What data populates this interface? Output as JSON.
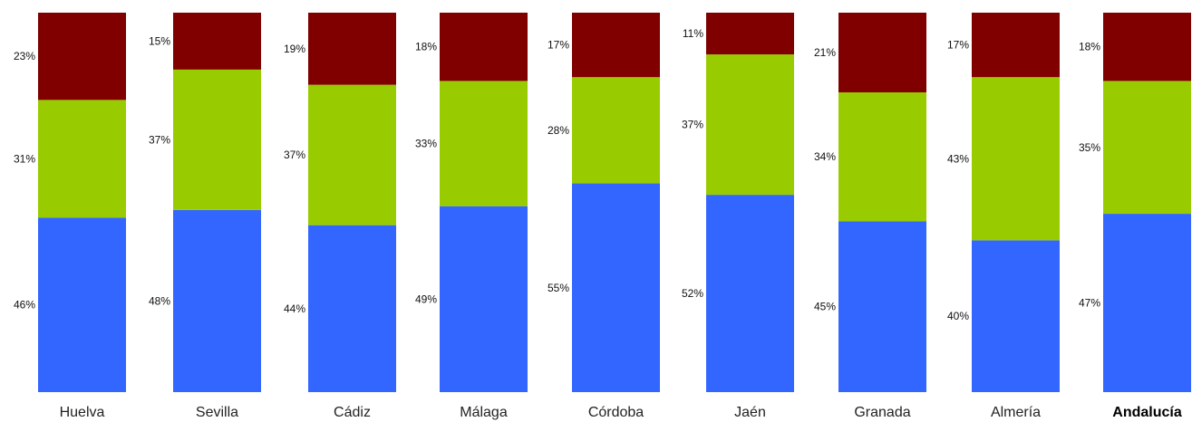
{
  "chart_data": {
    "type": "bar",
    "stacked": true,
    "normalized_percent": true,
    "categories": [
      "Huelva",
      "Sevilla",
      "Cádiz",
      "Málaga",
      "Córdoba",
      "Jaén",
      "Granada",
      "Almería",
      "Andalucía"
    ],
    "emphasized_category": "Andalucía",
    "series": [
      {
        "color": "#3366ff",
        "values": [
          46,
          48,
          44,
          49,
          55,
          52,
          45,
          40,
          47
        ],
        "labels": [
          "46%",
          "48%",
          "44%",
          "49%",
          "55%",
          "52%",
          "45%",
          "40%",
          "47%"
        ]
      },
      {
        "color": "#99cc00",
        "values": [
          31,
          37,
          37,
          33,
          28,
          37,
          34,
          43,
          35
        ],
        "labels": [
          "31%",
          "37%",
          "37%",
          "33%",
          "28%",
          "37%",
          "34%",
          "43%",
          "35%"
        ]
      },
      {
        "color": "#800000",
        "values": [
          23,
          15,
          19,
          18,
          17,
          11,
          21,
          17,
          18
        ],
        "labels": [
          "23%",
          "15%",
          "19%",
          "18%",
          "17%",
          "11%",
          "21%",
          "17%",
          "18%"
        ]
      }
    ],
    "title": "",
    "xlabel": "",
    "ylabel": "",
    "ylim": [
      0,
      100
    ],
    "legend": "none",
    "grid": false
  }
}
